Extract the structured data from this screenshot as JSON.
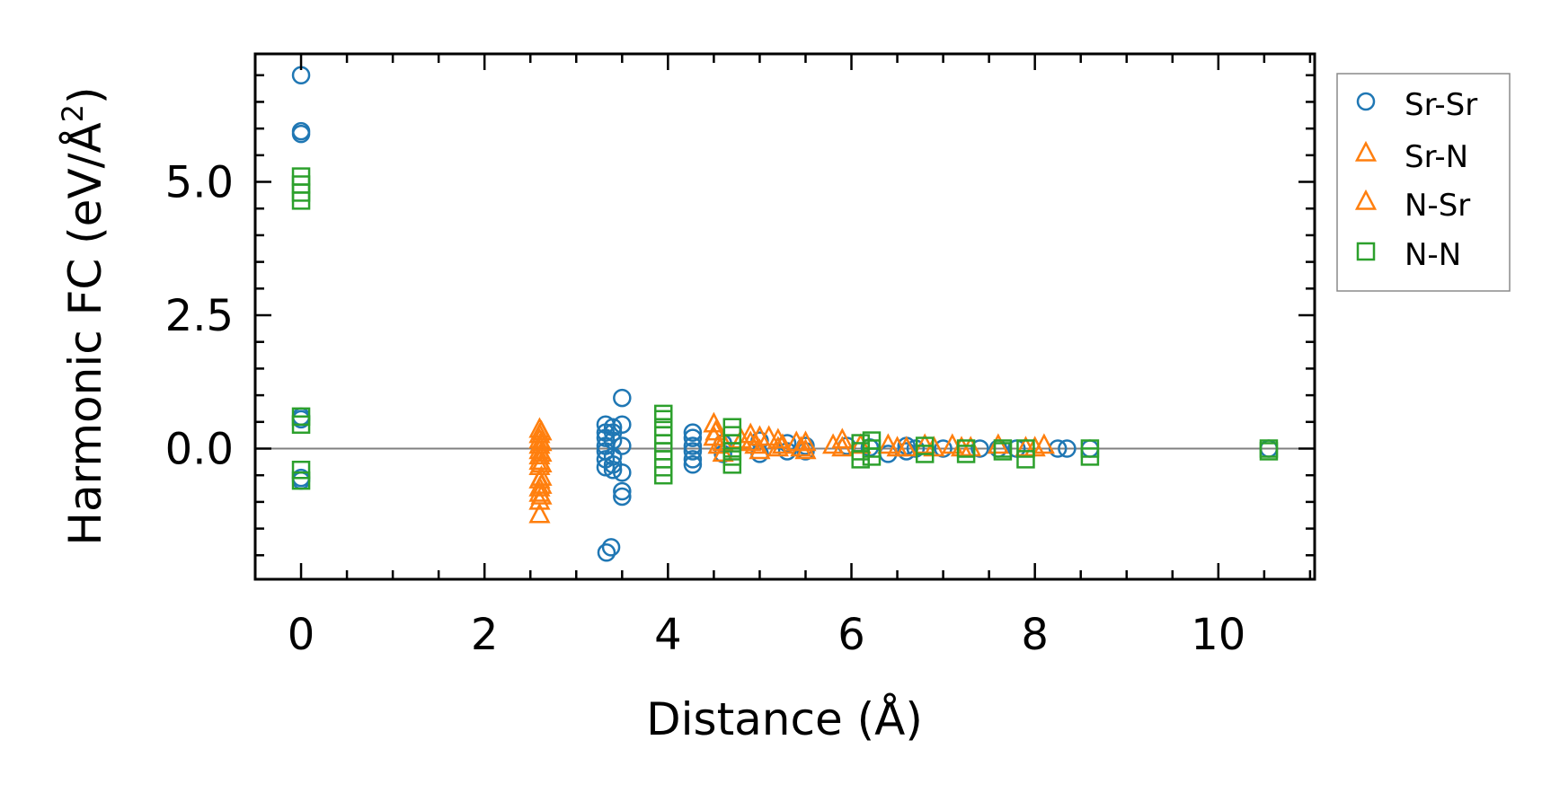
{
  "chart_data": {
    "type": "scatter",
    "title": "",
    "xlabel": "Distance (Å)",
    "ylabel": "Harmonic FC (eV/Å²)",
    "ylabel_parts": [
      "Harmonic FC (eV/Å",
      "2",
      ")"
    ],
    "xlim": [
      -0.5,
      11.05
    ],
    "ylim": [
      -2.45,
      7.4
    ],
    "x_ticks": [
      0,
      2,
      4,
      6,
      8,
      10
    ],
    "x_tick_labels": [
      "0",
      "2",
      "4",
      "6",
      "8",
      "10"
    ],
    "y_ticks": [
      0.0,
      2.5,
      5.0
    ],
    "y_tick_labels": [
      "0.0",
      "2.5",
      "5.0"
    ],
    "x_minor_step": 0.5,
    "y_minor_step": 0.5,
    "reference_line_y": 0,
    "grid": false,
    "legend_position": "outside-right-top",
    "series": [
      {
        "name": "Sr-Sr",
        "marker": "circle",
        "color": "#1f77b4",
        "points": [
          [
            0,
            7.0
          ],
          [
            0,
            5.95
          ],
          [
            0,
            5.9
          ],
          [
            0,
            0.6
          ],
          [
            0,
            0.55
          ],
          [
            0,
            -0.55
          ],
          [
            0,
            -0.6
          ],
          [
            3.33,
            -1.95
          ],
          [
            3.38,
            -1.85
          ],
          [
            3.5,
            0.95
          ],
          [
            3.5,
            0.45
          ],
          [
            3.5,
            0.05
          ],
          [
            3.5,
            -0.45
          ],
          [
            3.5,
            -0.8
          ],
          [
            3.5,
            -0.9
          ],
          [
            3.32,
            0.45
          ],
          [
            3.32,
            0.3
          ],
          [
            3.32,
            0.2
          ],
          [
            3.32,
            0.05
          ],
          [
            3.32,
            -0.05
          ],
          [
            3.32,
            -0.2
          ],
          [
            3.32,
            -0.35
          ],
          [
            3.4,
            0.4
          ],
          [
            3.4,
            0.3
          ],
          [
            3.4,
            0.15
          ],
          [
            3.4,
            -0.15
          ],
          [
            3.4,
            -0.3
          ],
          [
            3.4,
            -0.4
          ],
          [
            4.27,
            0.3
          ],
          [
            4.27,
            0.2
          ],
          [
            4.27,
            0.05
          ],
          [
            4.27,
            -0.05
          ],
          [
            4.27,
            -0.2
          ],
          [
            4.27,
            -0.3
          ],
          [
            4.6,
            0.1
          ],
          [
            4.6,
            -0.1
          ],
          [
            5.0,
            0.15
          ],
          [
            5.0,
            -0.1
          ],
          [
            5.3,
            0.1
          ],
          [
            5.3,
            -0.05
          ],
          [
            5.5,
            0.05
          ],
          [
            5.5,
            -0.05
          ],
          [
            5.95,
            0.05
          ],
          [
            6.2,
            0.02
          ],
          [
            6.4,
            -0.1
          ],
          [
            6.6,
            0.05
          ],
          [
            6.6,
            -0.05
          ],
          [
            6.7,
            0.0
          ],
          [
            7.0,
            0.0
          ],
          [
            7.4,
            0.0
          ],
          [
            7.6,
            0.0
          ],
          [
            7.8,
            0.0
          ],
          [
            8.25,
            0.0
          ],
          [
            8.35,
            0.0
          ],
          [
            8.6,
            0.0
          ],
          [
            10.55,
            0.0
          ]
        ]
      },
      {
        "name": "Sr-N",
        "marker": "triangle",
        "color": "#ff7f0e",
        "points": [
          [
            2.6,
            0.35
          ],
          [
            2.6,
            0.25
          ],
          [
            2.6,
            0.15
          ],
          [
            2.6,
            0.05
          ],
          [
            2.6,
            -0.05
          ],
          [
            2.6,
            -0.15
          ],
          [
            2.6,
            -0.25
          ],
          [
            2.6,
            -0.35
          ],
          [
            2.6,
            -0.6
          ],
          [
            2.6,
            -0.75
          ],
          [
            2.6,
            -0.85
          ],
          [
            2.6,
            -1.0
          ],
          [
            2.6,
            -1.25
          ],
          [
            4.5,
            0.45
          ],
          [
            4.5,
            0.2
          ],
          [
            4.6,
            0.1
          ],
          [
            4.6,
            -0.1
          ],
          [
            4.9,
            0.25
          ],
          [
            4.9,
            0.1
          ],
          [
            5.0,
            0.2
          ],
          [
            5.0,
            -0.05
          ],
          [
            5.2,
            0.15
          ],
          [
            5.2,
            0.0
          ],
          [
            5.5,
            0.1
          ],
          [
            5.5,
            -0.05
          ],
          [
            5.9,
            0.15
          ],
          [
            5.9,
            0.0
          ],
          [
            6.4,
            0.05
          ],
          [
            6.6,
            0.0
          ],
          [
            6.8,
            0.05
          ],
          [
            7.1,
            0.05
          ],
          [
            7.3,
            0.0
          ],
          [
            7.9,
            0.0
          ],
          [
            8.1,
            0.05
          ]
        ]
      },
      {
        "name": "N-Sr",
        "marker": "triangle",
        "color": "#ff7f0e",
        "points": [
          [
            2.62,
            0.3
          ],
          [
            2.62,
            0.1
          ],
          [
            2.62,
            -0.1
          ],
          [
            2.62,
            -0.3
          ],
          [
            2.62,
            -0.55
          ],
          [
            2.62,
            -0.7
          ],
          [
            2.62,
            -0.9
          ],
          [
            4.52,
            0.3
          ],
          [
            4.55,
            0.05
          ],
          [
            4.8,
            0.15
          ],
          [
            4.95,
            0.05
          ],
          [
            5.1,
            0.2
          ],
          [
            5.25,
            0.05
          ],
          [
            5.4,
            0.1
          ],
          [
            5.45,
            0.0
          ],
          [
            5.8,
            0.05
          ],
          [
            6.1,
            0.05
          ],
          [
            6.5,
            0.0
          ],
          [
            6.9,
            0.0
          ],
          [
            7.2,
            0.0
          ],
          [
            7.6,
            0.05
          ],
          [
            8.0,
            0.0
          ]
        ]
      },
      {
        "name": "N-N",
        "marker": "square",
        "color": "#2ca02c",
        "points": [
          [
            0,
            5.1
          ],
          [
            0,
            4.95
          ],
          [
            0,
            4.8
          ],
          [
            0,
            4.65
          ],
          [
            0,
            0.6
          ],
          [
            0,
            0.45
          ],
          [
            0,
            -0.4
          ],
          [
            0,
            -0.6
          ],
          [
            3.95,
            0.65
          ],
          [
            3.95,
            0.55
          ],
          [
            3.95,
            0.4
          ],
          [
            3.95,
            0.25
          ],
          [
            3.95,
            0.1
          ],
          [
            3.95,
            -0.05
          ],
          [
            3.95,
            -0.2
          ],
          [
            3.95,
            -0.35
          ],
          [
            3.95,
            -0.5
          ],
          [
            4.7,
            0.4
          ],
          [
            4.7,
            0.25
          ],
          [
            4.7,
            0.1
          ],
          [
            4.7,
            -0.05
          ],
          [
            4.7,
            -0.15
          ],
          [
            4.7,
            -0.3
          ],
          [
            6.1,
            0.1
          ],
          [
            6.1,
            -0.05
          ],
          [
            6.1,
            -0.2
          ],
          [
            6.22,
            0.15
          ],
          [
            6.22,
            0.0
          ],
          [
            6.22,
            -0.15
          ],
          [
            6.8,
            0.05
          ],
          [
            6.8,
            -0.1
          ],
          [
            7.25,
            0.0
          ],
          [
            7.25,
            -0.1
          ],
          [
            7.65,
            0.0
          ],
          [
            7.65,
            -0.05
          ],
          [
            7.9,
            0.0
          ],
          [
            7.9,
            -0.2
          ],
          [
            8.6,
            0.0
          ],
          [
            8.6,
            -0.15
          ],
          [
            10.55,
            0.0
          ],
          [
            10.55,
            -0.05
          ]
        ]
      }
    ]
  }
}
